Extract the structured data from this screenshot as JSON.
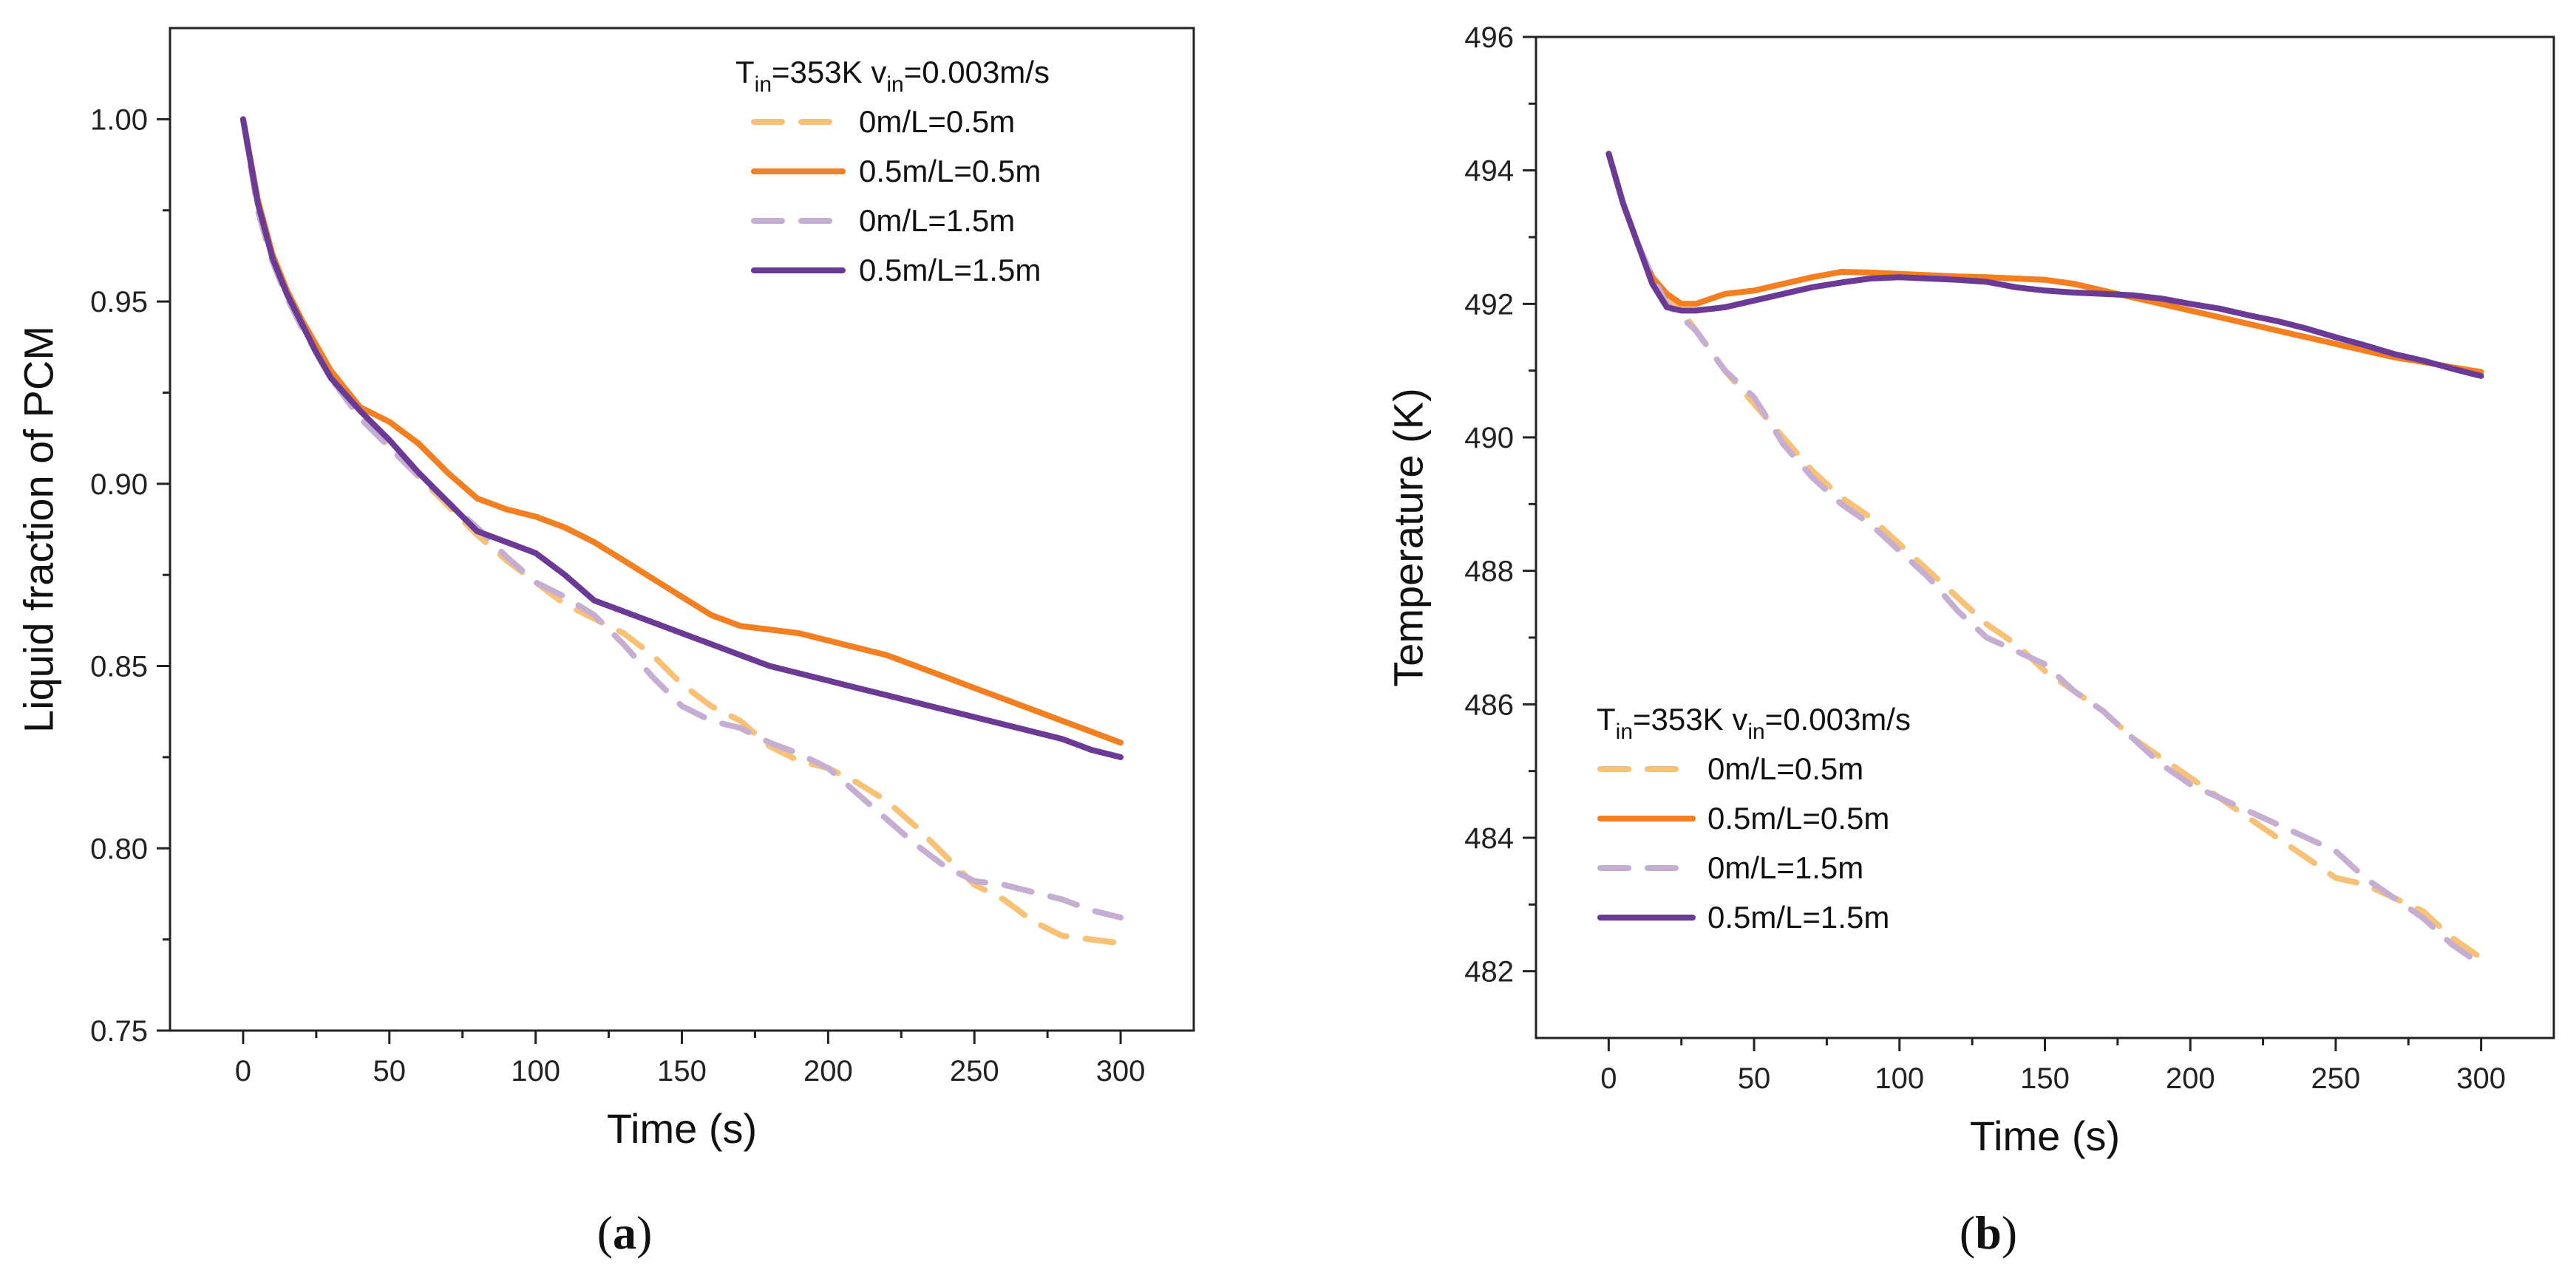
{
  "chart_data": [
    {
      "type": "line",
      "panel_label": {
        "open": "(",
        "letter": "a",
        "close": ")"
      },
      "xlabel": "Time (s)",
      "ylabel": "Liquid fraction of PCM",
      "xlim": [
        -25,
        325
      ],
      "ylim": [
        0.75,
        1.025
      ],
      "xticks": [
        0,
        50,
        100,
        150,
        200,
        250,
        300
      ],
      "yticks": [
        0.75,
        0.8,
        0.85,
        0.9,
        0.95,
        1.0
      ],
      "ytick_labels": [
        "0.75",
        "0.80",
        "0.85",
        "0.90",
        "0.95",
        "1.00"
      ],
      "legend": {
        "position": "top-right",
        "condition": {
          "t": "T",
          "t_sub": "in",
          "t_val": "=353K ",
          "v": "v",
          "v_sub": "in",
          "v_val": "=0.003m/s"
        }
      },
      "series": [
        {
          "name": "0m/L=0.5m",
          "color": "#F8C276",
          "dash": "dashed",
          "x": [
            0,
            5,
            10,
            15,
            20,
            25,
            30,
            40,
            50,
            60,
            70,
            80,
            90,
            100,
            110,
            120,
            130,
            140,
            150,
            160,
            170,
            180,
            190,
            200,
            210,
            220,
            230,
            240,
            250,
            260,
            270,
            280,
            290,
            300
          ],
          "y": [
            1.0,
            0.978,
            0.963,
            0.952,
            0.944,
            0.937,
            0.93,
            0.919,
            0.91,
            0.902,
            0.894,
            0.886,
            0.879,
            0.873,
            0.867,
            0.863,
            0.859,
            0.853,
            0.845,
            0.839,
            0.835,
            0.828,
            0.824,
            0.822,
            0.818,
            0.813,
            0.806,
            0.798,
            0.79,
            0.786,
            0.78,
            0.776,
            0.775,
            0.774
          ]
        },
        {
          "name": "0.5m/L=0.5m",
          "color": "#F47F20",
          "dash": "solid",
          "x": [
            0,
            5,
            10,
            15,
            20,
            25,
            30,
            40,
            50,
            60,
            70,
            80,
            90,
            100,
            110,
            120,
            130,
            140,
            150,
            160,
            170,
            180,
            190,
            200,
            210,
            220,
            230,
            240,
            250,
            260,
            270,
            280,
            290,
            300
          ],
          "y": [
            1.0,
            0.978,
            0.963,
            0.953,
            0.945,
            0.938,
            0.931,
            0.921,
            0.917,
            0.911,
            0.903,
            0.896,
            0.893,
            0.891,
            0.888,
            0.884,
            0.879,
            0.874,
            0.869,
            0.864,
            0.861,
            0.86,
            0.859,
            0.857,
            0.855,
            0.853,
            0.85,
            0.847,
            0.844,
            0.841,
            0.838,
            0.835,
            0.832,
            0.829
          ]
        },
        {
          "name": "0m/L=1.5m",
          "color": "#C6AED2",
          "dash": "dashed",
          "x": [
            0,
            5,
            10,
            15,
            20,
            25,
            30,
            40,
            50,
            60,
            70,
            80,
            90,
            100,
            110,
            120,
            130,
            140,
            150,
            160,
            170,
            180,
            190,
            200,
            210,
            220,
            230,
            240,
            250,
            260,
            270,
            280,
            290,
            300
          ],
          "y": [
            1.0,
            0.975,
            0.961,
            0.951,
            0.943,
            0.936,
            0.929,
            0.918,
            0.91,
            0.902,
            0.895,
            0.888,
            0.88,
            0.873,
            0.869,
            0.864,
            0.856,
            0.847,
            0.839,
            0.835,
            0.833,
            0.829,
            0.826,
            0.822,
            0.815,
            0.808,
            0.801,
            0.795,
            0.791,
            0.79,
            0.788,
            0.786,
            0.783,
            0.781
          ]
        },
        {
          "name": "0.5m/L=1.5m",
          "color": "#6A3A96",
          "dash": "solid",
          "x": [
            0,
            5,
            10,
            15,
            20,
            25,
            30,
            40,
            50,
            60,
            70,
            80,
            90,
            100,
            110,
            120,
            130,
            140,
            150,
            160,
            170,
            180,
            190,
            200,
            210,
            220,
            230,
            240,
            250,
            260,
            270,
            280,
            290,
            300
          ],
          "y": [
            1.0,
            0.977,
            0.962,
            0.952,
            0.944,
            0.936,
            0.929,
            0.92,
            0.912,
            0.903,
            0.895,
            0.887,
            0.884,
            0.881,
            0.875,
            0.868,
            0.865,
            0.862,
            0.859,
            0.856,
            0.853,
            0.85,
            0.848,
            0.846,
            0.844,
            0.842,
            0.84,
            0.838,
            0.836,
            0.834,
            0.832,
            0.83,
            0.827,
            0.825
          ]
        }
      ]
    },
    {
      "type": "line",
      "panel_label": {
        "open": "(",
        "letter": "b",
        "close": ")"
      },
      "xlabel": "Time (s)",
      "ylabel": "Temperature (K)",
      "xlim": [
        -25,
        325
      ],
      "ylim": [
        481,
        496
      ],
      "xticks": [
        0,
        50,
        100,
        150,
        200,
        250,
        300
      ],
      "yticks": [
        482,
        484,
        486,
        488,
        490,
        492,
        494,
        496
      ],
      "ytick_labels": [
        "482",
        "484",
        "486",
        "488",
        "490",
        "492",
        "494",
        "496"
      ],
      "legend": {
        "position": "bottom-left",
        "condition": {
          "t": "T",
          "t_sub": "in",
          "t_val": "=353K ",
          "v": "v",
          "v_sub": "in",
          "v_val": "=0.003m/s"
        }
      },
      "series": [
        {
          "name": "0m/L=0.5m",
          "color": "#F8C276",
          "dash": "dashed",
          "x": [
            0,
            5,
            10,
            15,
            20,
            25,
            30,
            40,
            50,
            60,
            70,
            80,
            90,
            100,
            110,
            120,
            130,
            140,
            150,
            160,
            170,
            180,
            190,
            200,
            210,
            220,
            230,
            240,
            250,
            260,
            270,
            280,
            290,
            300
          ],
          "y": [
            494.25,
            493.5,
            492.9,
            492.4,
            492.1,
            491.9,
            491.6,
            491.0,
            490.5,
            490.0,
            489.5,
            489.1,
            488.8,
            488.4,
            488.0,
            487.6,
            487.2,
            486.9,
            486.5,
            486.2,
            485.9,
            485.5,
            485.2,
            484.9,
            484.6,
            484.3,
            484.0,
            483.7,
            483.4,
            483.3,
            483.1,
            482.9,
            482.5,
            482.2
          ]
        },
        {
          "name": "0.5m/L=0.5m",
          "color": "#F47F20",
          "dash": "solid",
          "x": [
            0,
            5,
            10,
            15,
            20,
            25,
            30,
            40,
            50,
            60,
            70,
            80,
            90,
            100,
            110,
            120,
            130,
            140,
            150,
            160,
            170,
            180,
            190,
            200,
            210,
            220,
            230,
            240,
            250,
            260,
            270,
            280,
            290,
            300
          ],
          "y": [
            494.25,
            493.5,
            492.9,
            492.4,
            492.15,
            492.0,
            492.0,
            492.15,
            492.2,
            492.3,
            492.4,
            492.48,
            492.47,
            492.45,
            492.43,
            492.41,
            492.4,
            492.38,
            492.36,
            492.3,
            492.2,
            492.1,
            492.0,
            491.9,
            491.8,
            491.7,
            491.6,
            491.5,
            491.4,
            491.3,
            491.2,
            491.13,
            491.05,
            490.98
          ]
        },
        {
          "name": "0m/L=1.5m",
          "color": "#C6AED2",
          "dash": "dashed",
          "x": [
            0,
            5,
            10,
            15,
            20,
            25,
            30,
            40,
            50,
            60,
            70,
            80,
            90,
            100,
            110,
            120,
            130,
            140,
            150,
            160,
            170,
            180,
            190,
            200,
            210,
            220,
            230,
            240,
            250,
            260,
            270,
            280,
            290,
            300
          ],
          "y": [
            494.25,
            493.5,
            492.9,
            492.4,
            492.0,
            491.8,
            491.6,
            491.0,
            490.6,
            489.9,
            489.4,
            489.0,
            488.7,
            488.3,
            487.9,
            487.4,
            487.0,
            486.8,
            486.6,
            486.2,
            485.9,
            485.5,
            485.1,
            484.8,
            484.6,
            484.4,
            484.2,
            484.0,
            483.8,
            483.4,
            483.1,
            482.8,
            482.4,
            482.1
          ]
        },
        {
          "name": "0.5m/L=1.5m",
          "color": "#6A3A96",
          "dash": "solid",
          "x": [
            0,
            5,
            10,
            15,
            20,
            25,
            30,
            40,
            50,
            60,
            70,
            80,
            90,
            100,
            110,
            120,
            130,
            140,
            150,
            160,
            170,
            180,
            190,
            200,
            210,
            220,
            230,
            240,
            250,
            260,
            270,
            280,
            290,
            300
          ],
          "y": [
            494.25,
            493.5,
            492.9,
            492.3,
            491.95,
            491.9,
            491.9,
            491.95,
            492.05,
            492.15,
            492.25,
            492.32,
            492.38,
            492.4,
            492.38,
            492.36,
            492.33,
            492.25,
            492.2,
            492.17,
            492.15,
            492.13,
            492.08,
            492.0,
            491.93,
            491.83,
            491.74,
            491.63,
            491.5,
            491.38,
            491.25,
            491.15,
            491.03,
            490.92
          ]
        }
      ]
    }
  ]
}
